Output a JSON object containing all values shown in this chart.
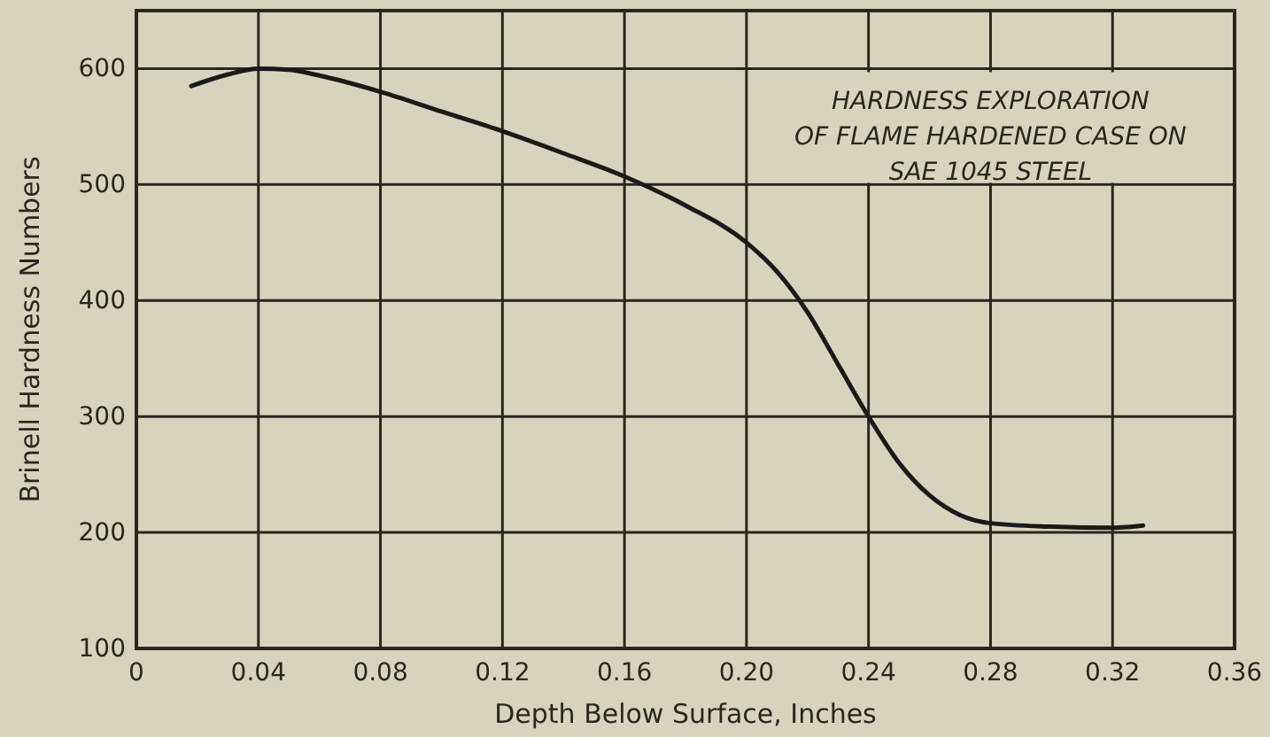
{
  "chart_data": {
    "type": "line",
    "xlabel": "Depth Below Surface, Inches",
    "ylabel": "Brinell Hardness Numbers",
    "annotations": [
      "HARDNESS EXPLORATION\nOF FLAME HARDENED CASE ON\nSAE 1045 STEEL"
    ],
    "x": [
      0.018,
      0.03,
      0.04,
      0.05,
      0.06,
      0.08,
      0.1,
      0.12,
      0.14,
      0.16,
      0.18,
      0.2,
      0.21,
      0.22,
      0.23,
      0.24,
      0.25,
      0.26,
      0.27,
      0.28,
      0.3,
      0.32,
      0.33
    ],
    "series": [
      {
        "color": "#1a1a1a",
        "values": [
          585,
          595,
          600,
          599,
          594,
          580,
          563,
          546,
          527,
          507,
          482,
          450,
          425,
          390,
          345,
          300,
          260,
          232,
          215,
          208,
          205,
          204,
          206
        ]
      }
    ],
    "xlim": [
      0,
      0.36
    ],
    "xticks": [
      0,
      {
        "value": 0.04,
        "label": "0.04"
      },
      {
        "value": 0.08,
        "label": "0.08"
      },
      {
        "value": 0.12,
        "label": "0.12"
      },
      {
        "value": 0.16,
        "label": "0.16"
      },
      {
        "value": 0.2,
        "label": "0.20"
      },
      {
        "value": 0.24,
        "label": "0.24"
      },
      {
        "value": 0.28,
        "label": "0.28"
      },
      {
        "value": 0.32,
        "label": "0.32"
      },
      {
        "value": 0.36,
        "label": "0.36"
      }
    ],
    "ylim": [
      100,
      650
    ],
    "yticks": [
      100,
      200,
      300,
      400,
      500,
      600
    ],
    "grid": true,
    "marker": "none",
    "line_style": "solid"
  }
}
